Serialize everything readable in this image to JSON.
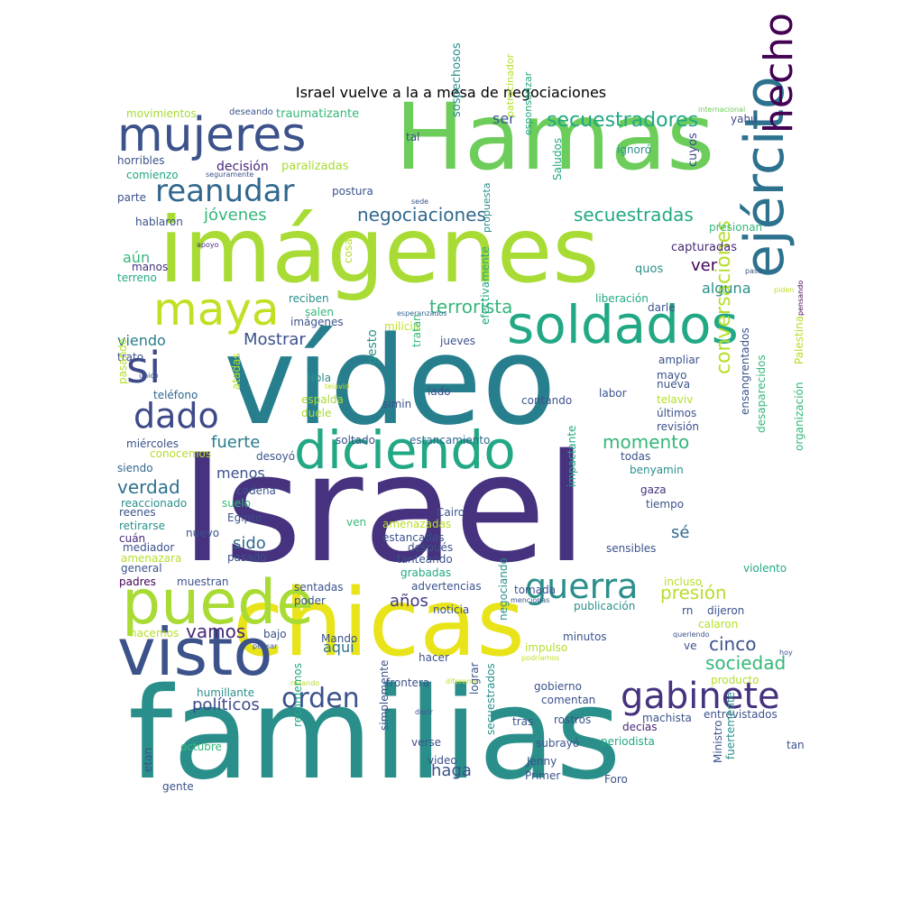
{
  "title": "Israel vuelve a la a mesa de negociaciones",
  "words": [
    {
      "text": "Israel",
      "color": "#46327e"
    },
    {
      "text": "familias",
      "color": "#2a8f8b"
    },
    {
      "text": "vídeo",
      "color": "#277f8e"
    },
    {
      "text": "chicas",
      "color": "#e8e419"
    },
    {
      "text": "Hamas",
      "color": "#6ccd5a"
    },
    {
      "text": "imágenes",
      "color": "#a8db34"
    },
    {
      "text": "puede",
      "color": "#a8db34"
    },
    {
      "text": "visto",
      "color": "#3b528b"
    },
    {
      "text": "diciendo",
      "color": "#22a884"
    },
    {
      "text": "soldados",
      "color": "#22a884"
    },
    {
      "text": "ejército",
      "color": "#2c728e"
    },
    {
      "text": "mujeres",
      "color": "#3b528b"
    },
    {
      "text": "hecho",
      "color": "#440154"
    },
    {
      "text": "maya",
      "color": "#c2df23"
    },
    {
      "text": "gabinete",
      "color": "#46327e"
    },
    {
      "text": "guerra",
      "color": "#2a8f8b"
    },
    {
      "text": "si",
      "color": "#3e4989"
    },
    {
      "text": "dado",
      "color": "#3e4989"
    },
    {
      "text": "orden",
      "color": "#3b528b"
    },
    {
      "text": "reanudar",
      "color": "#31688e"
    },
    {
      "text": "conversaciones",
      "color": "#b5de2b"
    },
    {
      "text": "secuestradores",
      "color": "#22a884"
    },
    {
      "text": "negociaciones",
      "color": "#31688e"
    },
    {
      "text": "secuestradas",
      "color": "#22a884"
    },
    {
      "text": "terrorista",
      "color": "#35b779"
    },
    {
      "text": "presión",
      "color": "#b5de2b"
    },
    {
      "text": "momento",
      "color": "#35b779"
    },
    {
      "text": "sociedad",
      "color": "#35b779"
    },
    {
      "text": "cinco",
      "color": "#3b528b"
    },
    {
      "text": "fuerte",
      "color": "#287c8e"
    },
    {
      "text": "Mostrar",
      "color": "#3b528b"
    },
    {
      "text": "años",
      "color": "#443a83"
    },
    {
      "text": "políticos",
      "color": "#3e4989"
    },
    {
      "text": "vamos",
      "color": "#482878"
    },
    {
      "text": "verdad",
      "color": "#2c728e"
    },
    {
      "text": "sido",
      "color": "#31688e"
    },
    {
      "text": "jóvenes",
      "color": "#35b779"
    },
    {
      "text": "ver",
      "color": "#440154"
    },
    {
      "text": "sé",
      "color": "#31688e"
    },
    {
      "text": "haga",
      "color": "#3b528b"
    },
    {
      "text": "viendo",
      "color": "#287c8e"
    },
    {
      "text": "aún",
      "color": "#35b779"
    },
    {
      "text": "alguna",
      "color": "#2a8f8b"
    },
    {
      "text": "menos",
      "color": "#3b528b"
    },
    {
      "text": "aquí",
      "color": "#2c728e"
    },
    {
      "text": "ser",
      "color": "#3b528b"
    },
    {
      "text": "traumatizante",
      "color": "#35b779"
    },
    {
      "text": "movimientos",
      "color": "#a8db34"
    },
    {
      "text": "deseando",
      "color": "#3b528b"
    },
    {
      "text": "yahu",
      "color": "#3e4989"
    },
    {
      "text": "internacional",
      "color": "#6ccd5a"
    },
    {
      "text": "sospechosos",
      "color": "#2a8f8b"
    },
    {
      "text": "patrocinador",
      "color": "#b5de2b"
    },
    {
      "text": "esponsorizar",
      "color": "#22a884"
    },
    {
      "text": "tal",
      "color": "#3b528b"
    },
    {
      "text": "ignoró",
      "color": "#2a8f8b"
    },
    {
      "text": "horribles",
      "color": "#3b528b"
    },
    {
      "text": "decisión",
      "color": "#482878"
    },
    {
      "text": "paralizadas",
      "color": "#a8db34"
    },
    {
      "text": "comienzo",
      "color": "#22a884"
    },
    {
      "text": "seguramente",
      "color": "#3b528b"
    },
    {
      "text": "postura",
      "color": "#3b528b"
    },
    {
      "text": "parte",
      "color": "#3b528b"
    },
    {
      "text": "cuyos",
      "color": "#3e4989"
    },
    {
      "text": "Saludos",
      "color": "#22a884"
    },
    {
      "text": "sede",
      "color": "#3b528b"
    },
    {
      "text": "hablaron",
      "color": "#3b528b"
    },
    {
      "text": "presionan",
      "color": "#35b779"
    },
    {
      "text": "apoyo",
      "color": "#46327e"
    },
    {
      "text": "propuesta",
      "color": "#2a8f8b"
    },
    {
      "text": "capturadas",
      "color": "#482878"
    },
    {
      "text": "manos",
      "color": "#46327e"
    },
    {
      "text": "terreno",
      "color": "#22a884"
    },
    {
      "text": "cosas",
      "color": "#b5de2b"
    },
    {
      "text": "quos",
      "color": "#2a8f8b"
    },
    {
      "text": "pase",
      "color": "#3b528b"
    },
    {
      "text": "piden",
      "color": "#c2df23"
    },
    {
      "text": "liberación",
      "color": "#22a884"
    },
    {
      "text": "reciben",
      "color": "#2a8f8b"
    },
    {
      "text": "salen",
      "color": "#35b779"
    },
    {
      "text": "imágenes",
      "color": "#3b528b"
    },
    {
      "text": "darle",
      "color": "#3b528b"
    },
    {
      "text": "esperanzados",
      "color": "#31688e"
    },
    {
      "text": "milicia",
      "color": "#c2df23"
    },
    {
      "text": "pensando",
      "color": "#440154"
    },
    {
      "text": "jueves",
      "color": "#3b528b"
    },
    {
      "text": "tratan",
      "color": "#35b779"
    },
    {
      "text": "efectivamente",
      "color": "#22a884"
    },
    {
      "text": "ampliar",
      "color": "#3b528b"
    },
    {
      "text": "trato",
      "color": "#3b528b"
    },
    {
      "text": "mayo",
      "color": "#3b528b"
    },
    {
      "text": "único",
      "color": "#3b528b"
    },
    {
      "text": "Hola",
      "color": "#2a8f8b"
    },
    {
      "text": "telavid",
      "color": "#c2df23"
    },
    {
      "text": "gesto",
      "color": "#2a8f8b"
    },
    {
      "text": "lado",
      "color": "#3b528b"
    },
    {
      "text": "labor",
      "color": "#3b528b"
    },
    {
      "text": "nueva",
      "color": "#3b528b"
    },
    {
      "text": "Palestina",
      "color": "#b5de2b"
    },
    {
      "text": "pasando",
      "color": "#b5de2b"
    },
    {
      "text": "teléfono",
      "color": "#31688e"
    },
    {
      "text": "atadas",
      "color": "#b5de2b"
    },
    {
      "text": "espalda",
      "color": "#a8db34"
    },
    {
      "text": "contando",
      "color": "#3b528b"
    },
    {
      "text": "telaviv",
      "color": "#b5de2b"
    },
    {
      "text": "últimos",
      "color": "#3b528b"
    },
    {
      "text": "duele",
      "color": "#a8db34"
    },
    {
      "text": "simin",
      "color": "#3b528b"
    },
    {
      "text": "revisión",
      "color": "#3b528b"
    },
    {
      "text": "ensangrentados",
      "color": "#3b528b"
    },
    {
      "text": "miércoles",
      "color": "#3b528b"
    },
    {
      "text": "conocemos",
      "color": "#b5de2b"
    },
    {
      "text": "soltado",
      "color": "#3b528b"
    },
    {
      "text": "estancamiento",
      "color": "#31688e"
    },
    {
      "text": "desaparecidos",
      "color": "#35b779"
    },
    {
      "text": "organización",
      "color": "#35b779"
    },
    {
      "text": "siendo",
      "color": "#31688e"
    },
    {
      "text": "desoyó",
      "color": "#3b528b"
    },
    {
      "text": "todas",
      "color": "#3b528b"
    },
    {
      "text": "benyamin",
      "color": "#2a8f8b"
    },
    {
      "text": "cadena",
      "color": "#3b528b"
    },
    {
      "text": "gaza",
      "color": "#46327e"
    },
    {
      "text": "reaccionado",
      "color": "#2a8f8b"
    },
    {
      "text": "suelo",
      "color": "#35b779"
    },
    {
      "text": "tiempo",
      "color": "#3b528b"
    },
    {
      "text": "reenes",
      "color": "#3b528b"
    },
    {
      "text": "Egipto",
      "color": "#3b528b"
    },
    {
      "text": "Cairo",
      "color": "#3b528b"
    },
    {
      "text": "impactante",
      "color": "#22a884"
    },
    {
      "text": "retirarse",
      "color": "#2a8f8b"
    },
    {
      "text": "amenazadas",
      "color": "#b5de2b"
    },
    {
      "text": "ven",
      "color": "#35b779"
    },
    {
      "text": "estancadas",
      "color": "#3b528b"
    },
    {
      "text": "cuán",
      "color": "#482878"
    },
    {
      "text": "nuevo",
      "color": "#3b528b"
    },
    {
      "text": "mediador",
      "color": "#3b528b"
    },
    {
      "text": "después",
      "color": "#3b528b"
    },
    {
      "text": "sensibles",
      "color": "#3b528b"
    },
    {
      "text": "amenazara",
      "color": "#b5de2b"
    },
    {
      "text": "tanteando",
      "color": "#3b528b"
    },
    {
      "text": "pasado",
      "color": "#3b528b"
    },
    {
      "text": "general",
      "color": "#3b528b"
    },
    {
      "text": "grabadas",
      "color": "#22a884"
    },
    {
      "text": "violento",
      "color": "#22a884"
    },
    {
      "text": "padres",
      "color": "#440154"
    },
    {
      "text": "muestran",
      "color": "#3b528b"
    },
    {
      "text": "incluso",
      "color": "#b5de2b"
    },
    {
      "text": "sentadas",
      "color": "#3b528b"
    },
    {
      "text": "advertencias",
      "color": "#3b528b"
    },
    {
      "text": "tomada",
      "color": "#3b528b"
    },
    {
      "text": "poder",
      "color": "#3b528b"
    },
    {
      "text": "mencionas",
      "color": "#3b528b"
    },
    {
      "text": "publicación",
      "color": "#2a8f8b"
    },
    {
      "text": "noticia",
      "color": "#3b528b"
    },
    {
      "text": "rn",
      "color": "#3b528b"
    },
    {
      "text": "dijeron",
      "color": "#3b528b"
    },
    {
      "text": "minutos",
      "color": "#3b528b"
    },
    {
      "text": "calaron",
      "color": "#b5de2b"
    },
    {
      "text": "hacemos",
      "color": "#b5de2b"
    },
    {
      "text": "bajo",
      "color": "#3b528b"
    },
    {
      "text": "impulso",
      "color": "#b5de2b"
    },
    {
      "text": "queriendo",
      "color": "#3b528b"
    },
    {
      "text": "pensar",
      "color": "#3b528b"
    },
    {
      "text": "Mando",
      "color": "#3b528b"
    },
    {
      "text": "negociando",
      "color": "#2a8f8b"
    },
    {
      "text": "podríamos",
      "color": "#c2df23"
    },
    {
      "text": "ve",
      "color": "#3b528b"
    },
    {
      "text": "hoy",
      "color": "#3b528b"
    },
    {
      "text": "hacer",
      "color": "#3b528b"
    },
    {
      "text": "producto",
      "color": "#b5de2b"
    },
    {
      "text": "rezando",
      "color": "#b5de2b"
    },
    {
      "text": "diferente",
      "color": "#c2df23"
    },
    {
      "text": "humillante",
      "color": "#2a8f8b"
    },
    {
      "text": "frontera",
      "color": "#3b528b"
    },
    {
      "text": "gobierno",
      "color": "#3b528b"
    },
    {
      "text": "comentan",
      "color": "#3b528b"
    },
    {
      "text": "entrevistados",
      "color": "#3b528b"
    },
    {
      "text": "machista",
      "color": "#3b528b"
    },
    {
      "text": "decir",
      "color": "#3b528b"
    },
    {
      "text": "lograr",
      "color": "#3b528b"
    },
    {
      "text": "tras",
      "color": "#3b528b"
    },
    {
      "text": "rostros",
      "color": "#3b528b"
    },
    {
      "text": "decías",
      "color": "#482878"
    },
    {
      "text": "etan",
      "color": "#3b528b"
    },
    {
      "text": "recordemos",
      "color": "#22a884"
    },
    {
      "text": "simplemente",
      "color": "#3b528b"
    },
    {
      "text": "secuestrados",
      "color": "#2a8f8b"
    },
    {
      "text": "subrayó",
      "color": "#3b528b"
    },
    {
      "text": "periodista",
      "color": "#22a884"
    },
    {
      "text": "tan",
      "color": "#3b528b"
    },
    {
      "text": "octubre",
      "color": "#35b779"
    },
    {
      "text": "verse",
      "color": "#3b528b"
    },
    {
      "text": "video",
      "color": "#3b528b"
    },
    {
      "text": "Jenny",
      "color": "#3b528b"
    },
    {
      "text": "Ministro",
      "color": "#3b528b"
    },
    {
      "text": "fuertemente",
      "color": "#2a8f8b"
    },
    {
      "text": "Primer",
      "color": "#3b528b"
    },
    {
      "text": "Foro",
      "color": "#3b528b"
    },
    {
      "text": "gente",
      "color": "#3b528b"
    }
  ]
}
